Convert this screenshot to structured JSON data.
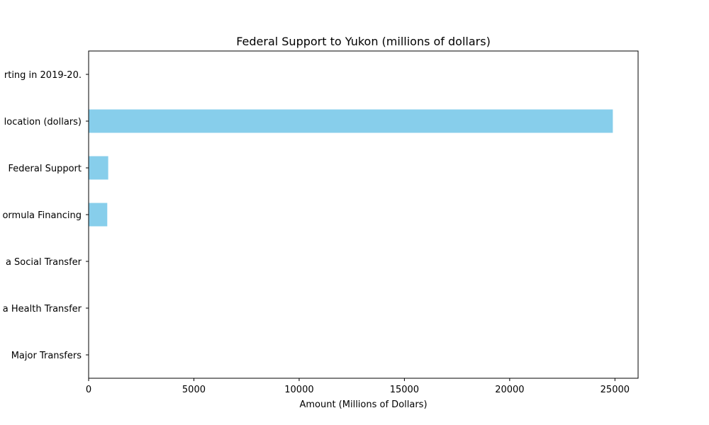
{
  "chart_data": {
    "type": "bar",
    "orientation": "horizontal",
    "title": "Federal Support to Yukon (millions of dollars)",
    "xlabel": "Amount (Millions of Dollars)",
    "ylabel": "",
    "categories": [
      "Major Transfers",
      "a Health Transfer",
      "a Social Transfer",
      "ormula Financing",
      " Federal Support",
      "location (dollars)",
      "rting in 2019-20."
    ],
    "values": [
      0,
      0,
      0,
      885,
      930,
      24900,
      0
    ],
    "xlim": [
      0,
      26100
    ],
    "xticks": [
      0,
      5000,
      10000,
      15000,
      20000,
      25000
    ],
    "grid": false,
    "legend": "none",
    "bar_color": "#87CEEB"
  }
}
